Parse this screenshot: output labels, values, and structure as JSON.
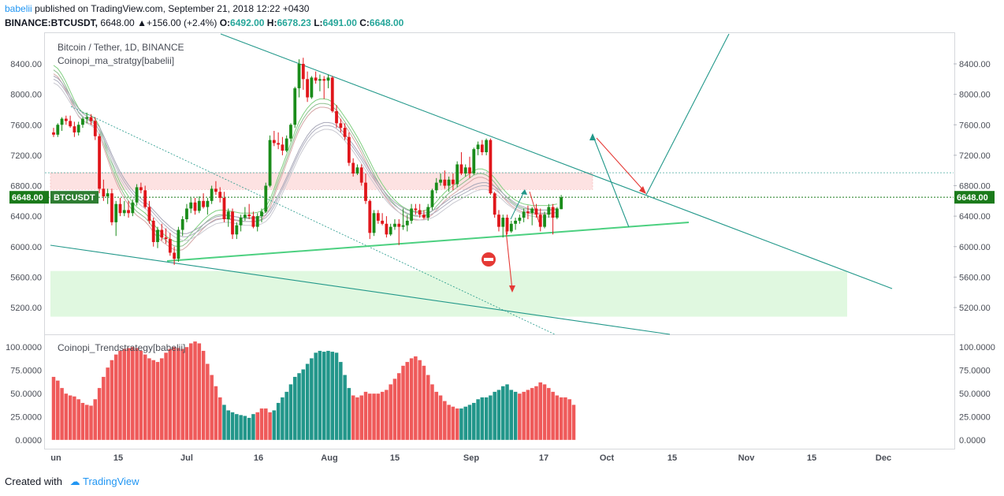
{
  "header": {
    "user": "babelii",
    "published_text": "published on TradingView.com, September 21, 2018 12:22 +0430",
    "symbol": "BINANCE:BTCUSDT,",
    "price": "6648.00",
    "change": "▲+156.00 (+2.4%)",
    "open_label": "O:",
    "open": "6492.00",
    "high_label": "H:",
    "high": "6678.23",
    "low_label": "L:",
    "low": "6491.00",
    "close_label": "C:",
    "close": "6648.00"
  },
  "colors": {
    "up": "#1a8c1a",
    "down": "#e0161b",
    "bull_fill": "#e0f8e0",
    "resist_fill": "#fde2e2",
    "osc_red": "#ef5a5a",
    "osc_teal": "#22968a",
    "line_teal": "#22988a",
    "support_green": "#4cd080",
    "arrow_red": "#e53935"
  },
  "chart_data": {
    "type": "candlestick",
    "title": "Bitcoin / Tether, 1D, BINANCE",
    "indicator_name": "Coinopi_ma_stratgy[babelii]",
    "price_label": "BTCUSDT",
    "last_price_tag": "6648.00",
    "y_ticks": [
      "8400.00",
      "8000.00",
      "7600.00",
      "7200.00",
      "6800.00",
      "6400.00",
      "6000.00",
      "5600.00",
      "5200.00"
    ],
    "y_tick_values": [
      8400,
      8000,
      7600,
      7200,
      6800,
      6400,
      6000,
      5600,
      5200
    ],
    "ylim": [
      4940,
      8720
    ],
    "x_ticks": [
      "un",
      "15",
      "Jul",
      "16",
      "Aug",
      "15",
      "Sep",
      "17",
      "Oct",
      "15",
      "Nov",
      "15",
      "Dec"
    ],
    "ohlc": [
      [
        7500,
        7560,
        7440,
        7470
      ],
      [
        7470,
        7620,
        7440,
        7600
      ],
      [
        7600,
        7700,
        7520,
        7680
      ],
      [
        7680,
        7720,
        7600,
        7650
      ],
      [
        7650,
        7720,
        7560,
        7580
      ],
      [
        7580,
        7640,
        7440,
        7500
      ],
      [
        7500,
        7640,
        7460,
        7600
      ],
      [
        7600,
        7700,
        7560,
        7680
      ],
      [
        7680,
        7760,
        7620,
        7700
      ],
      [
        7700,
        7740,
        7600,
        7650
      ],
      [
        7650,
        7700,
        7400,
        7450
      ],
      [
        7450,
        7480,
        6700,
        6760
      ],
      [
        6760,
        6880,
        6600,
        6660
      ],
      [
        6660,
        6760,
        6560,
        6700
      ],
      [
        6700,
        6760,
        6280,
        6320
      ],
      [
        6320,
        6600,
        6140,
        6560
      ],
      [
        6560,
        6640,
        6400,
        6440
      ],
      [
        6440,
        6600,
        6400,
        6480
      ],
      [
        6480,
        6600,
        6380,
        6440
      ],
      [
        6440,
        6620,
        6400,
        6580
      ],
      [
        6580,
        6820,
        6540,
        6780
      ],
      [
        6780,
        6840,
        6700,
        6740
      ],
      [
        6740,
        6800,
        6500,
        6520
      ],
      [
        6520,
        6600,
        6300,
        6340
      ],
      [
        6340,
        6380,
        6000,
        6060
      ],
      [
        6060,
        6260,
        5980,
        6220
      ],
      [
        6220,
        6300,
        6080,
        6120
      ],
      [
        6120,
        6240,
        6040,
        6100
      ],
      [
        6100,
        6180,
        5880,
        5920
      ],
      [
        5920,
        6000,
        5760,
        5840
      ],
      [
        5840,
        6260,
        5800,
        6220
      ],
      [
        6220,
        6400,
        6140,
        6360
      ],
      [
        6360,
        6560,
        6320,
        6500
      ],
      [
        6500,
        6640,
        6440,
        6580
      ],
      [
        6580,
        6640,
        6420,
        6470
      ],
      [
        6470,
        6660,
        6440,
        6600
      ],
      [
        6600,
        6700,
        6500,
        6520
      ],
      [
        6520,
        6640,
        6420,
        6600
      ],
      [
        6600,
        6800,
        6560,
        6760
      ],
      [
        6760,
        6860,
        6680,
        6720
      ],
      [
        6720,
        6780,
        6580,
        6640
      ],
      [
        6640,
        6720,
        6320,
        6360
      ],
      [
        6360,
        6500,
        6260,
        6460
      ],
      [
        6460,
        6500,
        6100,
        6160
      ],
      [
        6160,
        6320,
        6100,
        6280
      ],
      [
        6280,
        6420,
        6200,
        6380
      ],
      [
        6380,
        6520,
        6340,
        6420
      ],
      [
        6420,
        6560,
        6360,
        6400
      ],
      [
        6400,
        6460,
        6240,
        6260
      ],
      [
        6260,
        6440,
        6200,
        6400
      ],
      [
        6400,
        6500,
        6320,
        6460
      ],
      [
        6460,
        6840,
        6440,
        6800
      ],
      [
        6800,
        7460,
        6780,
        7400
      ],
      [
        7400,
        7520,
        7320,
        7360
      ],
      [
        7360,
        7500,
        7280,
        7340
      ],
      [
        7340,
        7440,
        7200,
        7260
      ],
      [
        7260,
        7460,
        7240,
        7420
      ],
      [
        7420,
        7620,
        7380,
        7600
      ],
      [
        7600,
        8100,
        7560,
        8080
      ],
      [
        8080,
        8460,
        7960,
        8400
      ],
      [
        8400,
        8480,
        8060,
        8200
      ],
      [
        8200,
        8300,
        7900,
        7960
      ],
      [
        7960,
        8240,
        7940,
        8220
      ],
      [
        8220,
        8300,
        8140,
        8180
      ],
      [
        8180,
        8260,
        8040,
        8200
      ],
      [
        8200,
        8240,
        7940,
        8180
      ],
      [
        8180,
        8260,
        8080,
        8220
      ],
      [
        8220,
        8240,
        7760,
        7780
      ],
      [
        7780,
        7860,
        7560,
        7620
      ],
      [
        7620,
        7680,
        7500,
        7560
      ],
      [
        7560,
        7620,
        7400,
        7440
      ],
      [
        7440,
        7500,
        7060,
        7100
      ],
      [
        7100,
        7160,
        6920,
        6960
      ],
      [
        6960,
        7080,
        6940,
        7040
      ],
      [
        7040,
        7080,
        6800,
        6840
      ],
      [
        6840,
        6960,
        6560,
        6600
      ],
      [
        6600,
        6620,
        6100,
        6180
      ],
      [
        6180,
        6480,
        6140,
        6440
      ],
      [
        6440,
        6480,
        6300,
        6340
      ],
      [
        6340,
        6440,
        6280,
        6300
      ],
      [
        6300,
        6400,
        6120,
        6160
      ],
      [
        6160,
        6300,
        6140,
        6260
      ],
      [
        6260,
        6360,
        6220,
        6300
      ],
      [
        6300,
        6360,
        6020,
        6260
      ],
      [
        6260,
        6500,
        6220,
        6280
      ],
      [
        6280,
        6420,
        6200,
        6340
      ],
      [
        6340,
        6560,
        6300,
        6500
      ],
      [
        6500,
        6560,
        6420,
        6480
      ],
      [
        6480,
        6560,
        6380,
        6420
      ],
      [
        6420,
        6480,
        6360,
        6380
      ],
      [
        6380,
        6560,
        6340,
        6520
      ],
      [
        6520,
        6760,
        6480,
        6740
      ],
      [
        6740,
        6900,
        6700,
        6840
      ],
      [
        6840,
        6960,
        6800,
        6880
      ],
      [
        6880,
        7000,
        6760,
        6800
      ],
      [
        6800,
        6920,
        6720,
        6880
      ],
      [
        6880,
        6960,
        6740,
        6820
      ],
      [
        6820,
        7120,
        6780,
        7080
      ],
      [
        7080,
        7240,
        6940,
        6960
      ],
      [
        6960,
        7080,
        6920,
        7040
      ],
      [
        7040,
        7180,
        6900,
        6960
      ],
      [
        6960,
        7300,
        6940,
        7280
      ],
      [
        7280,
        7380,
        7200,
        7340
      ],
      [
        7340,
        7400,
        7200,
        7240
      ],
      [
        7240,
        7420,
        7200,
        7400
      ],
      [
        7400,
        7420,
        6680,
        6700
      ],
      [
        6700,
        6720,
        6380,
        6420
      ],
      [
        6420,
        6480,
        6200,
        6260
      ],
      [
        6260,
        6420,
        6120,
        6380
      ],
      [
        6380,
        6420,
        6160,
        6200
      ],
      [
        6200,
        6340,
        6180,
        6300
      ],
      [
        6300,
        6380,
        6220,
        6340
      ],
      [
        6340,
        6420,
        6300,
        6380
      ],
      [
        6380,
        6500,
        6320,
        6460
      ],
      [
        6460,
        6540,
        6360,
        6440
      ],
      [
        6440,
        6520,
        6280,
        6500
      ],
      [
        6500,
        6560,
        6380,
        6420
      ],
      [
        6420,
        6500,
        6200,
        6260
      ],
      [
        6260,
        6460,
        6240,
        6420
      ],
      [
        6420,
        6560,
        6380,
        6520
      ],
      [
        6520,
        6560,
        6160,
        6380
      ],
      [
        6380,
        6520,
        6360,
        6500
      ],
      [
        6492,
        6678.23,
        6491,
        6648
      ]
    ],
    "ma_fast": [
      8320,
      8280,
      8200,
      8100,
      7980,
      7860,
      7760,
      7700,
      7680,
      7660,
      7620,
      7520,
      7360,
      7200,
      7040,
      6900,
      6780,
      6680,
      6600,
      6520,
      6460,
      6420,
      6380,
      6320,
      6240,
      6170,
      6120,
      6080,
      6040,
      6010,
      6000,
      6010,
      6050,
      6110,
      6170,
      6230,
      6290,
      6340,
      6380,
      6410,
      6420,
      6420,
      6410,
      6400,
      6390,
      6380,
      6380,
      6380,
      6380,
      6390,
      6410,
      6460,
      6560,
      6700,
      6860,
      7000,
      7150,
      7300,
      7450,
      7580,
      7680,
      7760,
      7820,
      7860,
      7880,
      7880,
      7870,
      7840,
      7790,
      7720,
      7640,
      7560,
      7470,
      7380,
      7280,
      7170,
      7060,
      6950,
      6850,
      6760,
      6680,
      6610,
      6550,
      6500,
      6460,
      6430,
      6410,
      6400,
      6400,
      6410,
      6430,
      6470,
      6530,
      6590,
      6650,
      6700,
      6740,
      6780,
      6820,
      6860,
      6900,
      6940,
      6960,
      6960,
      6940,
      6900,
      6840,
      6770,
      6700,
      6640,
      6590,
      6550,
      6520,
      6500,
      6490,
      6480,
      6480,
      6480,
      6480,
      6480,
      6490,
      6500
    ],
    "ma_slow": [
      8200,
      8170,
      8110,
      8030,
      7940,
      7850,
      7770,
      7710,
      7670,
      7640,
      7600,
      7530,
      7420,
      7300,
      7170,
      7050,
      6940,
      6850,
      6770,
      6700,
      6640,
      6590,
      6550,
      6500,
      6440,
      6380,
      6320,
      6270,
      6220,
      6180,
      6150,
      6130,
      6130,
      6150,
      6180,
      6210,
      6250,
      6290,
      6320,
      6350,
      6360,
      6370,
      6370,
      6360,
      6350,
      6340,
      6330,
      6330,
      6330,
      6330,
      6350,
      6380,
      6440,
      6530,
      6640,
      6750,
      6870,
      6990,
      7110,
      7230,
      7330,
      7420,
      7490,
      7540,
      7570,
      7590,
      7590,
      7580,
      7550,
      7500,
      7440,
      7370,
      7300,
      7220,
      7140,
      7050,
      6960,
      6880,
      6800,
      6720,
      6650,
      6590,
      6540,
      6500,
      6470,
      6440,
      6420,
      6410,
      6400,
      6400,
      6410,
      6430,
      6460,
      6500,
      6540,
      6580,
      6620,
      6650,
      6680,
      6710,
      6740,
      6770,
      6790,
      6800,
      6800,
      6780,
      6750,
      6710,
      6660,
      6610,
      6570,
      6530,
      6500,
      6480,
      6460,
      6450,
      6440,
      6440,
      6440,
      6440,
      6440,
      6450
    ],
    "osc": {
      "name": "Coinopi_Trendstrategy[babelii]",
      "y_ticks": [
        "100.0000",
        "75.0000",
        "50.0000",
        "25.0000",
        "0.0000"
      ],
      "y_tick_values": [
        100,
        75,
        50,
        25,
        0
      ],
      "values": [
        68,
        64,
        56,
        50,
        48,
        47,
        44,
        40,
        38,
        37,
        44,
        56,
        68,
        78,
        86,
        92,
        96,
        98,
        99,
        100,
        99,
        96,
        92,
        88,
        86,
        84,
        88,
        94,
        98,
        100,
        99,
        98,
        100,
        104,
        106,
        104,
        96,
        82,
        70,
        58,
        46,
        38,
        32,
        30,
        28,
        27,
        26,
        24,
        28,
        30,
        34,
        34,
        30,
        32,
        40,
        46,
        52,
        60,
        68,
        72,
        76,
        82,
        88,
        94,
        96,
        95,
        96,
        95,
        94,
        84,
        70,
        56,
        48,
        46,
        48,
        52,
        50,
        50,
        50,
        52,
        54,
        60,
        66,
        72,
        80,
        84,
        88,
        90,
        86,
        80,
        70,
        60,
        52,
        48,
        42,
        38,
        36,
        34,
        34,
        36,
        38,
        40,
        44,
        46,
        46,
        48,
        52,
        54,
        58,
        60,
        54,
        52,
        50,
        52,
        54,
        56,
        58,
        62,
        60,
        56,
        52,
        48,
        46,
        46,
        44,
        38
      ],
      "colors": "rrrrrrrrrrrrrrrrrrrrrrrrrrrrrrrrrrrrrrrrrttttttttrrrrtttttttttttttttttttrrrrrrrrrrrrrrrrrrrrrrrrrrttttttttttttttrrrrrrrrrrrrrrt"
    }
  },
  "footer": {
    "created_with": "Created with",
    "brand": "TradingView"
  }
}
